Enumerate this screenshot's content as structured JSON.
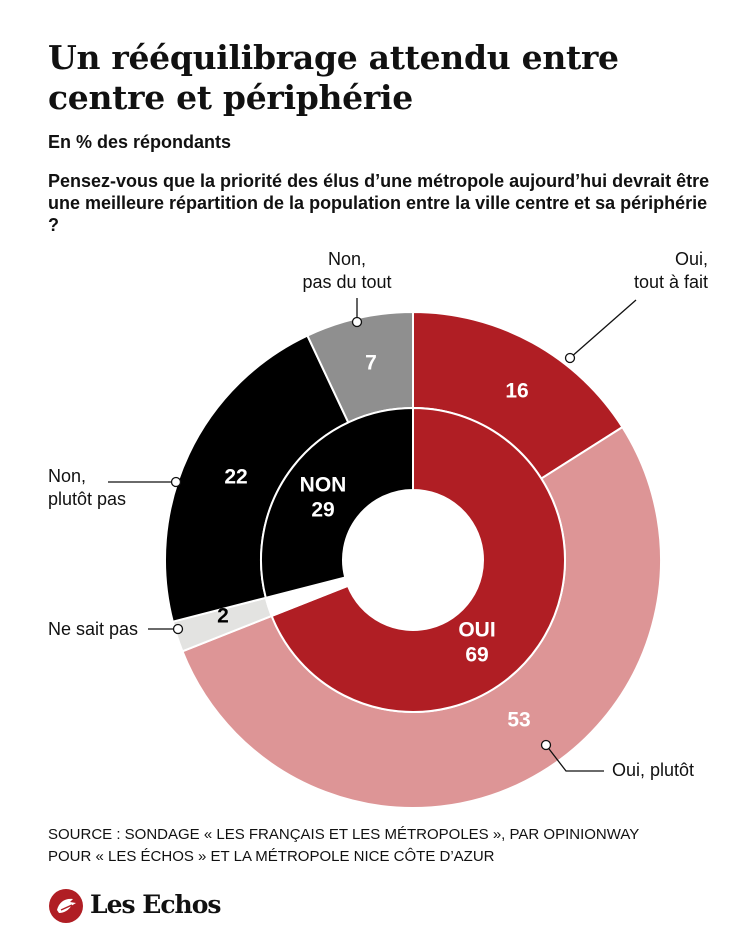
{
  "header": {
    "title": "Un rééquilibrage attendu entre centre et périphérie",
    "subtitle": "En % des répondants",
    "question": "Pensez-vous que la priorité des élus d’une métropole aujourd’hui devrait être une meilleure répartition de la population entre la ville centre et sa périphérie ?"
  },
  "chart_data": {
    "type": "donut",
    "unit": "%",
    "outer_ring": [
      {
        "label": "Oui, tout à fait",
        "label_lines": [
          "Oui,",
          "tout à fait"
        ],
        "value": 16,
        "color": "#b01e24",
        "text_color": "#ffffff"
      },
      {
        "label": "Oui, plutôt",
        "label_lines": [
          "Oui, plutôt"
        ],
        "value": 53,
        "color": "#dd9596",
        "text_color": "#ffffff"
      },
      {
        "label": "Ne sait pas",
        "label_lines": [
          "Ne sait pas"
        ],
        "value": 2,
        "color": "#e3e3e1",
        "text_color": "#000000"
      },
      {
        "label": "Non, plutôt pas",
        "label_lines": [
          "Non,",
          "plutôt pas"
        ],
        "value": 22,
        "color": "#000000",
        "text_color": "#ffffff"
      },
      {
        "label": "Non, pas du tout",
        "label_lines": [
          "Non,",
          "pas du tout"
        ],
        "value": 7,
        "color": "#8f8f8f",
        "text_color": "#ffffff"
      }
    ],
    "inner_ring": [
      {
        "label": "OUI",
        "value": 69,
        "color": "#b01e24",
        "text_color": "#ffffff"
      },
      {
        "label": "Ne sait pas",
        "value": 2,
        "color": "#ffffff",
        "text_color": "#000000"
      },
      {
        "label": "NON",
        "value": 29,
        "color": "#000000",
        "text_color": "#ffffff"
      }
    ]
  },
  "footer": {
    "source_line1": "SOURCE : SONDAGE « LES FRANÇAIS ET LES MÉTROPOLES », PAR OPINIONWAY",
    "source_line2": "POUR « LES ÉCHOS » ET LA MÉTROPOLE NICE CÔTE D’AZUR",
    "logo_text": "Les Echos",
    "logo_color": "#b01e24"
  }
}
